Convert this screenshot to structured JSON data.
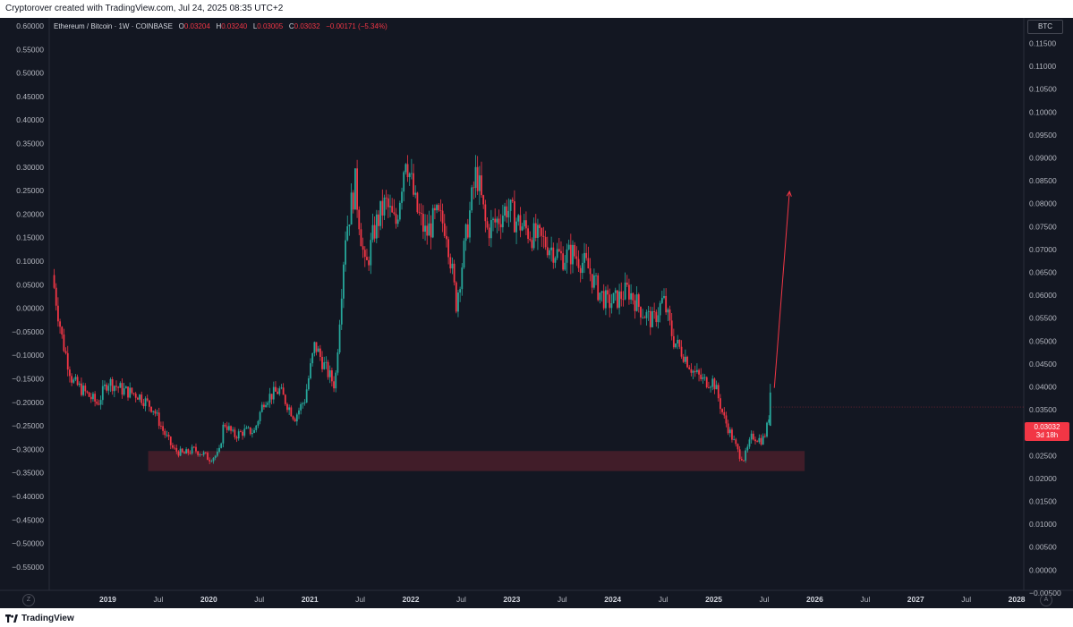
{
  "header": {
    "credit": "Cryptorover created with TradingView.com, Jul 24, 2025 08:35 UTC+2"
  },
  "footer": {
    "brand": "TradingView"
  },
  "legend": {
    "symbol": "Ethereum / Bitcoin · 1W · COINBASE",
    "o_label": "O",
    "o_value": "0.03204",
    "h_label": "H",
    "h_value": "0.03240",
    "l_label": "L",
    "l_value": "0.03005",
    "c_label": "C",
    "c_value": "0.03032",
    "change": "−0.00171 (−5.34%)"
  },
  "currency_badge": "BTC",
  "price_tag": {
    "price": "0.03032",
    "countdown": "3d 18h"
  },
  "scale_buttons": {
    "left": "Z",
    "right": "A"
  },
  "colors": {
    "background": "#131722",
    "up": "#26a69a",
    "down": "#f23645",
    "zone": "#4a1f2a",
    "text": "#b2b5be"
  },
  "chart_data": {
    "type": "candlestick",
    "left_axis": {
      "ticks": [
        "0.60000",
        "0.55000",
        "0.50000",
        "0.45000",
        "0.40000",
        "0.35000",
        "0.30000",
        "0.25000",
        "0.20000",
        "0.15000",
        "0.10000",
        "0.05000",
        "0.00000",
        "−0.05000",
        "−0.10000",
        "−0.15000",
        "−0.20000",
        "−0.25000",
        "−0.30000",
        "−0.35000",
        "−0.40000",
        "−0.45000",
        "−0.50000",
        "−0.55000"
      ],
      "range": [
        -0.55,
        0.6
      ]
    },
    "right_axis": {
      "ticks": [
        "0.11500",
        "0.11000",
        "0.10500",
        "0.10000",
        "0.09500",
        "0.09000",
        "0.08500",
        "0.08000",
        "0.07500",
        "0.07000",
        "0.06500",
        "0.06000",
        "0.05500",
        "0.05000",
        "0.04500",
        "0.04000",
        "0.03500",
        "0.03000",
        "0.02500",
        "0.02000",
        "0.01500",
        "0.01000",
        "0.00500",
        "0.00000",
        "−0.00500"
      ],
      "range": [
        -0.005,
        0.115
      ],
      "unit": "BTC"
    },
    "x_axis": {
      "ticks": [
        {
          "label": "2019",
          "t": 2019.0,
          "bold": true
        },
        {
          "label": "Jul",
          "t": 2019.5,
          "bold": false
        },
        {
          "label": "2020",
          "t": 2020.0,
          "bold": true
        },
        {
          "label": "Jul",
          "t": 2020.5,
          "bold": false
        },
        {
          "label": "2021",
          "t": 2021.0,
          "bold": true
        },
        {
          "label": "Jul",
          "t": 2021.5,
          "bold": false
        },
        {
          "label": "2022",
          "t": 2022.0,
          "bold": true
        },
        {
          "label": "Jul",
          "t": 2022.5,
          "bold": false
        },
        {
          "label": "2023",
          "t": 2023.0,
          "bold": true
        },
        {
          "label": "Jul",
          "t": 2023.5,
          "bold": false
        },
        {
          "label": "2024",
          "t": 2024.0,
          "bold": true
        },
        {
          "label": "Jul",
          "t": 2024.5,
          "bold": false
        },
        {
          "label": "2025",
          "t": 2025.0,
          "bold": true
        },
        {
          "label": "Jul",
          "t": 2025.5,
          "bold": false
        },
        {
          "label": "2026",
          "t": 2026.0,
          "bold": true
        },
        {
          "label": "Jul",
          "t": 2026.5,
          "bold": false
        },
        {
          "label": "2027",
          "t": 2027.0,
          "bold": true
        },
        {
          "label": "Jul",
          "t": 2027.5,
          "bold": false
        },
        {
          "label": "2028",
          "t": 2028.0,
          "bold": true
        }
      ]
    },
    "price_path": [
      [
        2018.45,
        0.0592
      ],
      [
        2018.55,
        0.045
      ],
      [
        2018.65,
        0.036
      ],
      [
        2018.8,
        0.033
      ],
      [
        2018.9,
        0.031
      ],
      [
        2019.0,
        0.036
      ],
      [
        2019.15,
        0.034
      ],
      [
        2019.3,
        0.033
      ],
      [
        2019.45,
        0.03
      ],
      [
        2019.55,
        0.025
      ],
      [
        2019.65,
        0.021
      ],
      [
        2019.75,
        0.02
      ],
      [
        2019.85,
        0.021
      ],
      [
        2019.95,
        0.02
      ],
      [
        2020.0,
        0.019
      ],
      [
        2020.1,
        0.02
      ],
      [
        2020.15,
        0.027
      ],
      [
        2020.25,
        0.024
      ],
      [
        2020.35,
        0.025
      ],
      [
        2020.45,
        0.025
      ],
      [
        2020.55,
        0.032
      ],
      [
        2020.7,
        0.034
      ],
      [
        2020.85,
        0.028
      ],
      [
        2020.95,
        0.032
      ],
      [
        2021.05,
        0.044
      ],
      [
        2021.15,
        0.039
      ],
      [
        2021.25,
        0.035
      ],
      [
        2021.35,
        0.068
      ],
      [
        2021.45,
        0.079
      ],
      [
        2021.55,
        0.06
      ],
      [
        2021.65,
        0.07
      ],
      [
        2021.75,
        0.075
      ],
      [
        2021.85,
        0.07
      ],
      [
        2021.95,
        0.086
      ],
      [
        2022.05,
        0.074
      ],
      [
        2022.15,
        0.068
      ],
      [
        2022.25,
        0.072
      ],
      [
        2022.35,
        0.07
      ],
      [
        2022.45,
        0.053
      ],
      [
        2022.55,
        0.068
      ],
      [
        2022.65,
        0.082
      ],
      [
        2022.75,
        0.069
      ],
      [
        2022.85,
        0.071
      ],
      [
        2022.95,
        0.074
      ],
      [
        2023.05,
        0.071
      ],
      [
        2023.2,
        0.068
      ],
      [
        2023.35,
        0.066
      ],
      [
        2023.5,
        0.063
      ],
      [
        2023.6,
        0.064
      ],
      [
        2023.75,
        0.061
      ],
      [
        2023.85,
        0.056
      ],
      [
        2023.95,
        0.053
      ],
      [
        2024.05,
        0.054
      ],
      [
        2024.15,
        0.056
      ],
      [
        2024.3,
        0.051
      ],
      [
        2024.4,
        0.049
      ],
      [
        2024.5,
        0.054
      ],
      [
        2024.6,
        0.045
      ],
      [
        2024.7,
        0.042
      ],
      [
        2024.8,
        0.038
      ],
      [
        2024.9,
        0.036
      ],
      [
        2025.0,
        0.036
      ],
      [
        2025.1,
        0.028
      ],
      [
        2025.25,
        0.02
      ],
      [
        2025.3,
        0.019
      ],
      [
        2025.38,
        0.024
      ],
      [
        2025.48,
        0.023
      ],
      [
        2025.52,
        0.025
      ],
      [
        2025.56,
        0.0303
      ]
    ],
    "support_zone": {
      "y_low": 0.0163,
      "y_high": 0.0207,
      "t_start": 2019.4,
      "t_end": 2025.9
    },
    "projection_arrow": {
      "t_start": 2025.6,
      "y_start": 0.0345,
      "t_end": 2025.75,
      "y_end": 0.0775
    },
    "last_candle": {
      "open": 0.03204,
      "high": 0.0324,
      "low": 0.03005,
      "close": 0.03032
    }
  }
}
